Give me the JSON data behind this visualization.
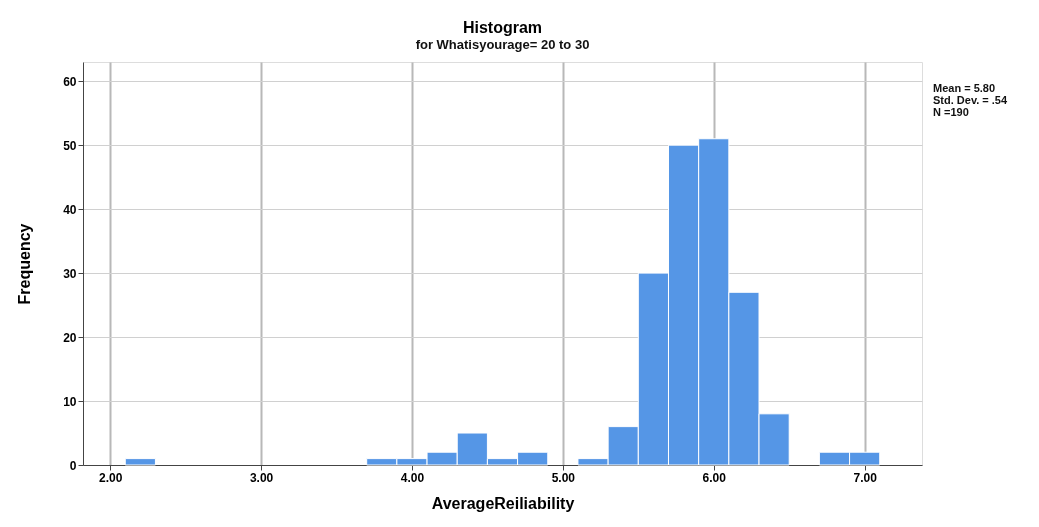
{
  "chart_data": {
    "type": "histogram",
    "title": "Histogram",
    "subtitle": "for Whatisyourage= 20 to 30",
    "xlabel": "AverageReiliability",
    "ylabel": "Frequency",
    "bins": [
      2.1,
      2.3,
      2.5,
      2.7,
      2.9,
      3.1,
      3.3,
      3.5,
      3.7,
      3.9,
      4.1,
      4.3,
      4.5,
      4.7,
      4.9,
      5.1,
      5.3,
      5.5,
      5.7,
      5.9,
      6.1,
      6.3,
      6.5,
      6.7,
      6.9,
      7.1
    ],
    "values": [
      1,
      0,
      0,
      0,
      0,
      0,
      0,
      0,
      1,
      1,
      2,
      5,
      1,
      2,
      0,
      1,
      6,
      30,
      50,
      51,
      27,
      8,
      0,
      2,
      2
    ],
    "color": "#5596e6",
    "xlim": [
      1.82,
      7.38
    ],
    "xticks": [
      {
        "value": 2,
        "label": "2.00"
      },
      {
        "value": 3,
        "label": "3.00"
      },
      {
        "value": 4,
        "label": "4.00"
      },
      {
        "value": 5,
        "label": "5.00"
      },
      {
        "value": 6,
        "label": "6.00"
      },
      {
        "value": 7,
        "label": "7.00"
      }
    ],
    "ylim": [
      0,
      63
    ],
    "yticks": [
      0,
      10,
      20,
      30,
      40,
      50,
      60
    ],
    "grid": true,
    "annotations": [
      "Mean = 5.80",
      "Std. Dev. = .54",
      "N =190"
    ]
  }
}
